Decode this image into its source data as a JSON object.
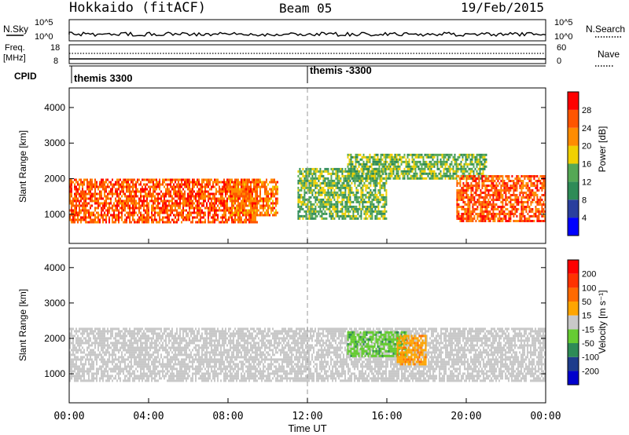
{
  "header": {
    "radar": "Hokkaido (fitACF)",
    "beam": "Beam 05",
    "date": "19/Feb/2015"
  },
  "strips": {
    "nsky_label": "N.Sky",
    "noise_ticks_left": [
      "10^5",
      "10^0"
    ],
    "noise_ticks_right": [
      "10^5",
      "10^0"
    ],
    "nsearch_label": "N.Search",
    "freq_label_1": "Freq.",
    "freq_label_2": "[MHz]",
    "freq_ticks": [
      "18",
      "8"
    ],
    "nave_ticks": [
      "60",
      "0"
    ],
    "nave_label": "Nave",
    "cpid_label": "CPID",
    "cpid_segments": [
      {
        "name": "themis 3300",
        "start_hour": 0
      },
      {
        "name": "themis -3300",
        "start_hour": 12
      }
    ]
  },
  "chart_data": [
    {
      "type": "heatmap",
      "title": "Power",
      "ylabel": "Slant Range [km]",
      "xlabel": "Time UT",
      "xlim_hours": [
        0,
        24
      ],
      "ylim_km": [
        180,
        4550
      ],
      "xticks": [
        "00:00",
        "04:00",
        "08:00",
        "12:00",
        "16:00",
        "20:00",
        "00:00"
      ],
      "yticks": [
        "1000",
        "2000",
        "3000",
        "4000"
      ],
      "colorbar": {
        "label": "Power [dB]",
        "ticks": [
          "4",
          "8",
          "12",
          "16",
          "20",
          "24",
          "28"
        ],
        "colors": [
          "#0000ff",
          "#2a3f9e",
          "#2e8b57",
          "#55a855",
          "#f0d000",
          "#ff8c00",
          "#ff5500",
          "#ff0000"
        ]
      },
      "features": [
        {
          "name": "dayside band",
          "t_start": 0,
          "t_end": 9.5,
          "range_km": [
            800,
            2000
          ],
          "power_db": 26
        },
        {
          "name": "rising arc",
          "t_start": 8,
          "t_end": 10.5,
          "range_km": [
            1000,
            2000
          ],
          "power_db": 24
        },
        {
          "name": "descending band",
          "t_start": 11.5,
          "t_end": 16,
          "range_km": [
            900,
            2300
          ],
          "power_db": 14
        },
        {
          "name": "upper band",
          "t_start": 14,
          "t_end": 21,
          "range_km": [
            2000,
            2700
          ],
          "power_db": 14
        },
        {
          "name": "evening band",
          "t_start": 19.5,
          "t_end": 24,
          "range_km": [
            800,
            2100
          ],
          "power_db": 26
        }
      ]
    },
    {
      "type": "heatmap",
      "title": "Velocity",
      "ylabel": "Slant Range [km]",
      "xlabel": "Time UT",
      "xlim_hours": [
        0,
        24
      ],
      "ylim_km": [
        180,
        4550
      ],
      "xticks": [
        "00:00",
        "04:00",
        "08:00",
        "12:00",
        "16:00",
        "20:00",
        "00:00"
      ],
      "yticks": [
        "1000",
        "2000",
        "3000",
        "4000"
      ],
      "colorbar": {
        "label": "Velocity [m s⁻¹]",
        "ticks": [
          "200",
          "100",
          "50",
          "15",
          "-15",
          "-50",
          "-100",
          "-200"
        ],
        "colors": [
          "#0000cd",
          "#1e3c8c",
          "#2e8b57",
          "#66cc33",
          "#c8c8c8",
          "#ffa500",
          "#ff6a00",
          "#ff3300",
          "#ff0000"
        ]
      },
      "features": [
        {
          "name": "ground scatter",
          "t_start": 0,
          "t_end": 24,
          "range_km": [
            800,
            2300
          ],
          "velocity_ms": 0
        },
        {
          "name": "positive patch",
          "t_start": 14,
          "t_end": 17,
          "range_km": [
            1500,
            2200
          ],
          "velocity_ms": 40
        },
        {
          "name": "negative patch",
          "t_start": 16.5,
          "t_end": 18,
          "range_km": [
            1300,
            2100
          ],
          "velocity_ms": -40
        }
      ]
    }
  ]
}
